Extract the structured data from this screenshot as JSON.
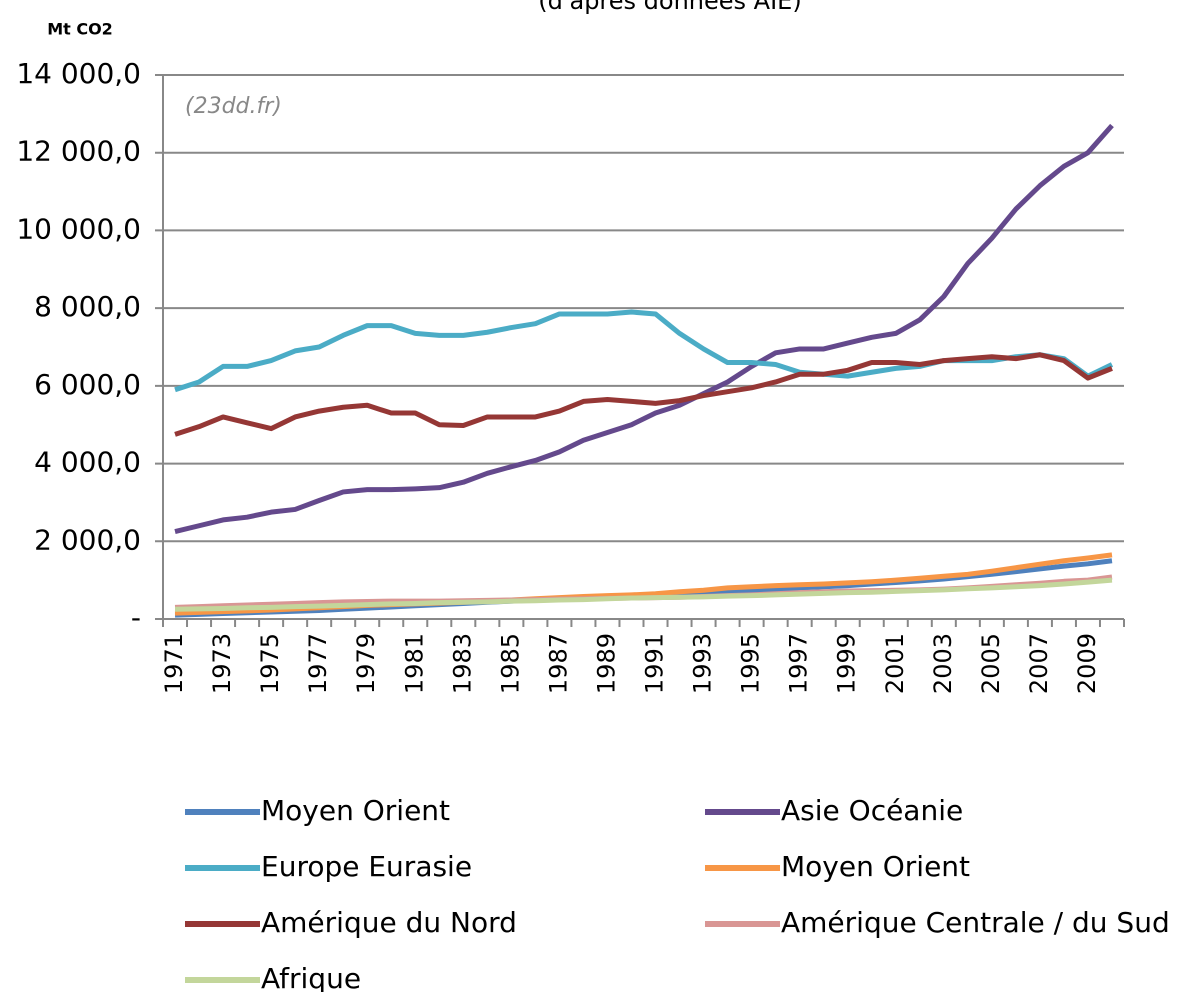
{
  "chart_data": {
    "type": "line",
    "subtitle": "(d'après données AIE)",
    "y_label": "Mt CO2",
    "annotation": "(23dd.fr)",
    "categories": [
      "1971",
      null,
      "1973",
      null,
      "1975",
      null,
      "1977",
      null,
      "1979",
      null,
      "1981",
      null,
      "1983",
      null,
      "1985",
      null,
      "1987",
      null,
      "1989",
      null,
      "1991",
      null,
      "1993",
      null,
      "1995",
      null,
      "1997",
      null,
      "1999",
      null,
      "2001",
      null,
      "2003",
      null,
      "2005",
      null,
      "2007",
      null,
      "2009",
      null
    ],
    "ylim": [
      0,
      14000
    ],
    "yticks": [
      {
        "value": 0,
        "label": "-"
      },
      {
        "value": 2000,
        "label": "2 000,0"
      },
      {
        "value": 4000,
        "label": "4 000,0"
      },
      {
        "value": 6000,
        "label": "6 000,0"
      },
      {
        "value": 8000,
        "label": "8 000,0"
      },
      {
        "value": 10000,
        "label": "10 000,0"
      },
      {
        "value": 12000,
        "label": "12 000,0"
      },
      {
        "value": 14000,
        "label": "14 000,0"
      }
    ],
    "grid": true,
    "series": [
      {
        "name": "Moyen Orient",
        "color": "#4f81bd",
        "values": [
          100,
          120,
          140,
          160,
          180,
          200,
          220,
          250,
          280,
          310,
          340,
          370,
          400,
          430,
          460,
          490,
          520,
          550,
          570,
          590,
          610,
          630,
          660,
          690,
          720,
          760,
          800,
          830,
          860,
          900,
          940,
          980,
          1030,
          1090,
          1150,
          1220,
          1290,
          1360,
          1420,
          1500
        ]
      },
      {
        "name": "Asie Océanie",
        "color": "#64498c",
        "values": [
          2250,
          2400,
          2550,
          2620,
          2750,
          2820,
          3050,
          3270,
          3330,
          3330,
          3350,
          3380,
          3520,
          3750,
          3920,
          4080,
          4300,
          4600,
          4800,
          5000,
          5300,
          5500,
          5800,
          6100,
          6500,
          6850,
          6950,
          6950,
          7100,
          7250,
          7350,
          7700,
          8300,
          9150,
          9800,
          10550,
          11150,
          11650,
          12000,
          12700
        ]
      },
      {
        "name": "Europe Eurasie",
        "color": "#4bacc6",
        "values": [
          5900,
          6100,
          6500,
          6500,
          6650,
          6900,
          7000,
          7300,
          7550,
          7550,
          7350,
          7300,
          7300,
          7380,
          7500,
          7600,
          7850,
          7850,
          7850,
          7900,
          7850,
          7350,
          6950,
          6600,
          6600,
          6550,
          6350,
          6300,
          6250,
          6350,
          6450,
          6500,
          6650,
          6650,
          6650,
          6750,
          6800,
          6700,
          6250,
          6550
        ]
      },
      {
        "name": "Moyen Orient",
        "color": "#f79646",
        "values": [
          150,
          170,
          190,
          210,
          230,
          260,
          290,
          320,
          350,
          370,
          390,
          410,
          430,
          460,
          490,
          520,
          550,
          580,
          600,
          620,
          650,
          700,
          740,
          800,
          830,
          860,
          880,
          900,
          930,
          960,
          1000,
          1050,
          1100,
          1150,
          1230,
          1320,
          1410,
          1500,
          1570,
          1650
        ]
      },
      {
        "name": "Amérique du Nord",
        "color": "#953735",
        "values": [
          4750,
          4950,
          5200,
          5050,
          4900,
          5200,
          5350,
          5450,
          5500,
          5300,
          5300,
          5000,
          4980,
          5200,
          5200,
          5200,
          5350,
          5600,
          5650,
          5600,
          5550,
          5620,
          5750,
          5850,
          5950,
          6100,
          6300,
          6300,
          6400,
          6600,
          6600,
          6550,
          6650,
          6700,
          6750,
          6700,
          6800,
          6650,
          6200,
          6450
        ]
      },
      {
        "name": "Amérique Centrale / du Sud",
        "color": "#d99694",
        "values": [
          300,
          320,
          340,
          360,
          380,
          400,
          420,
          440,
          450,
          460,
          460,
          460,
          470,
          480,
          490,
          500,
          510,
          520,
          530,
          540,
          550,
          560,
          580,
          600,
          620,
          650,
          680,
          700,
          720,
          730,
          740,
          750,
          770,
          800,
          840,
          880,
          920,
          970,
          1000,
          1080
        ]
      },
      {
        "name": "Afrique",
        "color": "#c3d69b",
        "values": [
          250,
          260,
          270,
          290,
          300,
          320,
          330,
          350,
          370,
          390,
          400,
          420,
          430,
          440,
          460,
          470,
          490,
          500,
          520,
          540,
          550,
          560,
          570,
          590,
          600,
          620,
          640,
          660,
          680,
          690,
          710,
          730,
          750,
          780,
          800,
          830,
          860,
          900,
          950,
          1000
        ]
      }
    ]
  }
}
